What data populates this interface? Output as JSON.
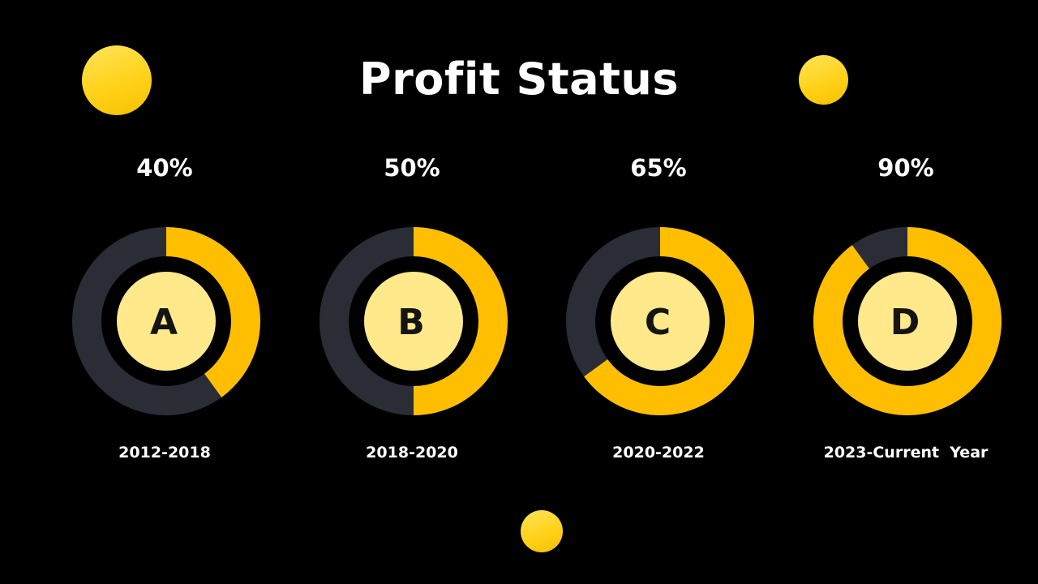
{
  "title": "Profit Status",
  "colors": {
    "background": "#000000",
    "ring_track": "#2a2d36",
    "ring_fill": "#ffbf00",
    "center_disc": "#ffe98a",
    "center_letter": "#141414",
    "text": "#ffffff",
    "decor": "#ffd21a"
  },
  "chart_data": {
    "type": "pie",
    "variant": "donut-progress",
    "title": "Profit Status",
    "series": [
      {
        "label": "A",
        "percent_label": "40%",
        "value": 40,
        "period": "2012-2018"
      },
      {
        "label": "B",
        "percent_label": "50%",
        "value": 50,
        "period": "2018-2020"
      },
      {
        "label": "C",
        "percent_label": "65%",
        "value": 65,
        "period": "2020-2022"
      },
      {
        "label": "D",
        "percent_label": "90%",
        "value": 90,
        "period": "2023-Current  Year"
      }
    ]
  }
}
